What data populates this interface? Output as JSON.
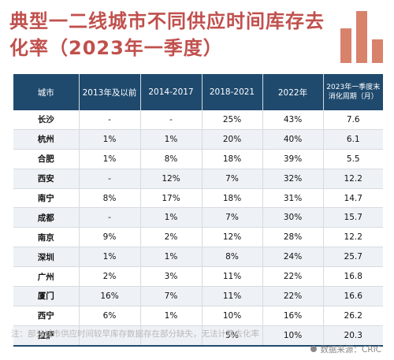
{
  "title": "典型一二线城市不同供应时间库存去化率（2023年一季度）",
  "colors": {
    "title": "#c0504d",
    "header_bg": "#1f4a6e",
    "logo": "#d8826c"
  },
  "table": {
    "headers": [
      "城市",
      "2013年及以前",
      "2014-2017",
      "2018-2021",
      "2022年",
      "2023年一季度末消化周期（月）"
    ],
    "rows": [
      [
        "长沙",
        "-",
        "-",
        "25%",
        "43%",
        "7.6"
      ],
      [
        "杭州",
        "1%",
        "1%",
        "20%",
        "40%",
        "6.1"
      ],
      [
        "合肥",
        "1%",
        "8%",
        "18%",
        "39%",
        "5.5"
      ],
      [
        "西安",
        "-",
        "12%",
        "7%",
        "32%",
        "12.2"
      ],
      [
        "南宁",
        "8%",
        "17%",
        "18%",
        "31%",
        "14.7"
      ],
      [
        "成都",
        "-",
        "1%",
        "7%",
        "30%",
        "15.7"
      ],
      [
        "南京",
        "9%",
        "2%",
        "12%",
        "28%",
        "12.2"
      ],
      [
        "深圳",
        "1%",
        "1%",
        "8%",
        "24%",
        "25.7"
      ],
      [
        "广州",
        "2%",
        "3%",
        "11%",
        "22%",
        "16.8"
      ],
      [
        "厦门",
        "16%",
        "7%",
        "11%",
        "22%",
        "16.6"
      ],
      [
        "西宁",
        "6%",
        "1%",
        "10%",
        "16%",
        "26.2"
      ],
      [
        "拉萨",
        "",
        "",
        "5%",
        "10%",
        "20.3"
      ]
    ]
  },
  "note": "注：部分城市供应时间较早库存数据存在部分缺失，无法计算去化率",
  "source": "数据来源：CRIC",
  "icons": {
    "logo": "bar-chart-logo-icon",
    "source_dot": "dot-icon"
  }
}
